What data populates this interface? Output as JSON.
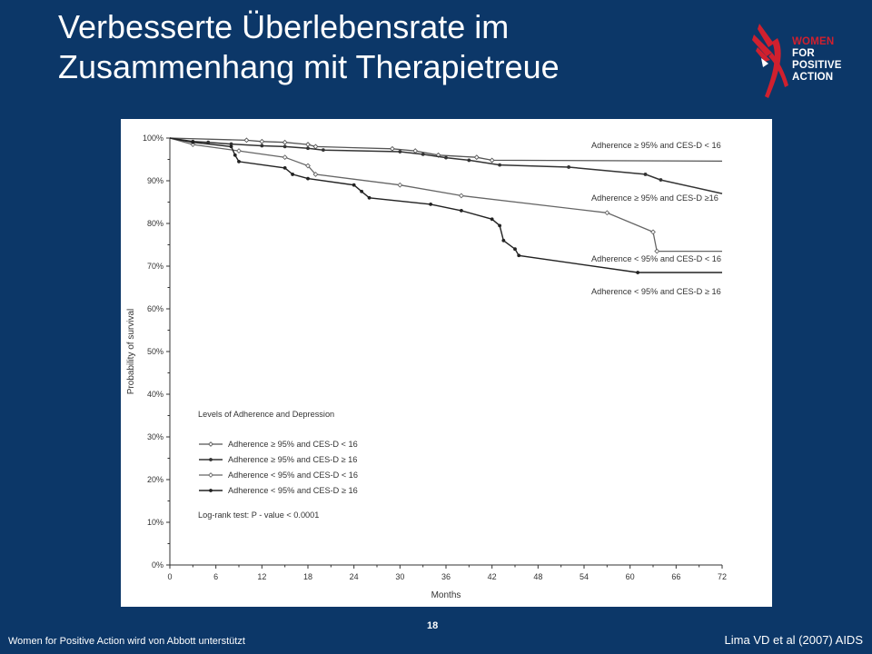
{
  "slide": {
    "title_line1": "Verbesserte Überlebensrate im",
    "title_line2": "Zusammenhang mit Therapietreue",
    "page_number": "18",
    "footer_left": "Women for Positive Action wird von Abbott unterstützt",
    "footer_right": "Lima VD et al (2007) AIDS",
    "logo": {
      "line1": "WOMEN",
      "line2": "FOR",
      "line3": "POSITIVE",
      "line4": "ACTION",
      "accent": "#d0202e"
    },
    "background": "#0c3768"
  },
  "chart_data": {
    "type": "line",
    "step": true,
    "xlabel": "Months",
    "ylabel": "Probability of survival",
    "xlim": [
      0,
      72
    ],
    "ylim": [
      0,
      100
    ],
    "xticks": [
      "0",
      "6",
      "12",
      "18",
      "24",
      "30",
      "36",
      "42",
      "48",
      "54",
      "60",
      "66",
      "72"
    ],
    "yticks": [
      "0%",
      "10%",
      "20%",
      "30%",
      "40%",
      "50%",
      "60%",
      "70%",
      "80%",
      "90%",
      "100%"
    ],
    "grid": false,
    "legend_title": "Levels of Adherence and Depression",
    "legend_placement": "bottom-left",
    "annotation": "Log-rank test: P - value < 0.0001",
    "series": [
      {
        "name": "Adherence ≥ 95% and CES-D < 16",
        "marker": "diamond",
        "x": [
          0,
          10,
          12,
          15,
          18,
          19,
          29,
          32,
          35,
          40,
          42,
          72
        ],
        "y": [
          100,
          99.5,
          99.2,
          99,
          98.5,
          98,
          97.5,
          97,
          96,
          95.5,
          94.8,
          94.6
        ]
      },
      {
        "name": "Adherence ≥ 95% and CES-D ≥16",
        "marker": "dot",
        "x": [
          0,
          3,
          5,
          8,
          12,
          15,
          18,
          20,
          30,
          33,
          36,
          39,
          43,
          52,
          62,
          64,
          72
        ],
        "y": [
          100,
          99.2,
          99,
          98.6,
          98.2,
          98,
          97.6,
          97.2,
          96.8,
          96.2,
          95.4,
          94.8,
          93.7,
          93.2,
          91.5,
          90.2,
          87
        ]
      },
      {
        "name": "Adherence < 95% and CES-D < 16",
        "marker": "diamond",
        "x": [
          0,
          3,
          9,
          15,
          18,
          19,
          30,
          38,
          57,
          63,
          63.5,
          72
        ],
        "y": [
          100,
          98.5,
          97,
          95.5,
          93.5,
          91.5,
          89,
          86.5,
          82.5,
          78,
          73.5,
          73.5
        ]
      },
      {
        "name": "Adherence < 95% and CES-D ≥ 16",
        "marker": "dot",
        "x": [
          0,
          3,
          8,
          8.5,
          9,
          15,
          16,
          18,
          24,
          25,
          26,
          34,
          38,
          42,
          43,
          43.5,
          45,
          45.5,
          61,
          72
        ],
        "y": [
          100,
          99,
          98,
          96,
          94.5,
          93,
          91.5,
          90.5,
          89,
          87.5,
          86,
          84.5,
          83,
          81,
          79.5,
          76,
          74,
          72.5,
          68.5,
          68.5
        ]
      }
    ],
    "series_labels": [
      "Adherence  ≥ 95% and CES-D < 16",
      "Adherence ≥ 95% and CES-D ≥16",
      "Adherence < 95% and CES-D < 16",
      "Adherence < 95% and CES-D ≥ 16"
    ],
    "legend_entries": [
      "Adherence  ≥ 95% and CES-D < 16",
      "Adherence  ≥ 95% and CES-D ≥ 16",
      "Adherence < 95% and CES-D < 16",
      "Adherence < 95% and CES-D ≥ 16"
    ]
  }
}
